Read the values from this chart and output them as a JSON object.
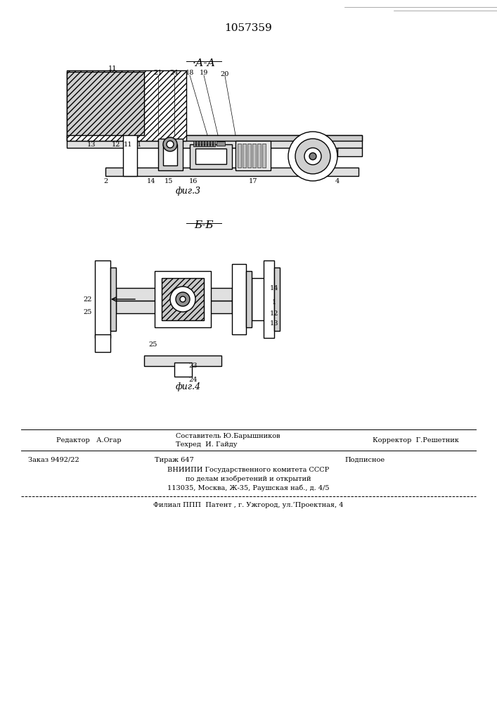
{
  "patent_number": "1057359",
  "section_label_1": "А-А",
  "section_label_2": "Б-Б",
  "fig_label_1": "фиг.3",
  "fig_label_2": "фиг.4",
  "footer_line1_left": "Редактор   А.Огар",
  "footer_line1_mid": "Составитель Ю.Барышников\nТехред  И. Гайду",
  "footer_line1_right": "Корректор  Г.Решетник",
  "footer_line2": "Заказ 9492/22       Тираж 647                   Подписное",
  "footer_line3": "ВНИИПИ Государственного комитета СССР",
  "footer_line4": "по делам изобретений и открытий",
  "footer_line5": "113035, Москва, Ж-35, Раушская наб., д. 4/5",
  "footer_line6": "Филиал ППП  Патент , г. Ужгород, ул.’Проектная, 4",
  "bg_color": "#ffffff",
  "line_color": "#000000",
  "hatch_color": "#000000"
}
